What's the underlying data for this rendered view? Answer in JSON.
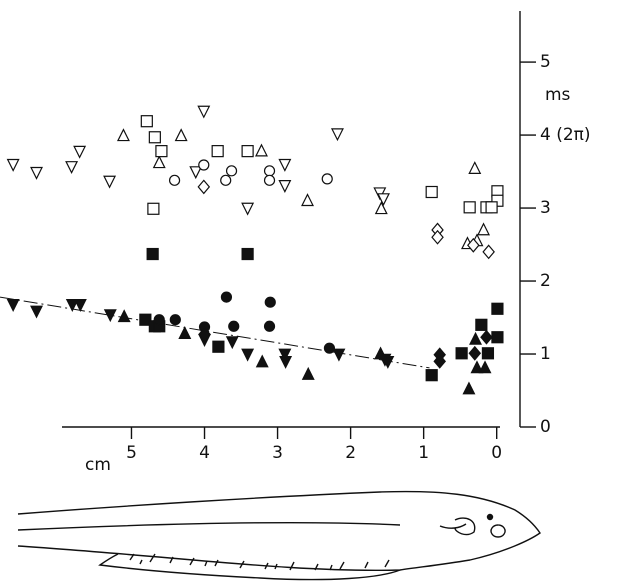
{
  "chart_data": {
    "type": "scatter",
    "xlabel": "cm",
    "ylabel": "ms",
    "xlim": [
      6.8,
      -0.1
    ],
    "ylim": [
      0,
      5.7
    ],
    "xticks": [
      5,
      4,
      3,
      2,
      1,
      0
    ],
    "yticks": [
      0,
      1,
      2,
      3,
      {
        "value": 4,
        "label": "4 (2π)"
      },
      5
    ],
    "color": "#111",
    "trend": {
      "x": [
        6.8,
        0.92
      ],
      "values": [
        1.78,
        0.81
      ]
    },
    "series": [
      {
        "marker": "triangle-down",
        "filled": false,
        "x": [
          6.62,
          6.3,
          5.82,
          5.71,
          5.3,
          4.01,
          4.12,
          3.41,
          2.9,
          2.9,
          2.18,
          1.6,
          1.55
        ],
        "values": [
          3.59,
          3.48,
          3.56,
          3.77,
          3.36,
          4.32,
          3.49,
          2.99,
          3.59,
          3.3,
          4.01,
          3.2,
          3.12
        ]
      },
      {
        "marker": "triangle-up",
        "filled": false,
        "x": [
          5.11,
          4.62,
          4.32,
          3.22,
          2.59,
          1.58,
          0.3,
          0.4,
          0.27,
          0.18
        ],
        "values": [
          4.0,
          3.63,
          4.0,
          3.79,
          3.11,
          3.0,
          3.55,
          2.52,
          2.56,
          2.71
        ]
      },
      {
        "marker": "square",
        "filled": false,
        "x": [
          4.79,
          4.68,
          4.59,
          4.7,
          3.82,
          3.41,
          0.89,
          0.37,
          0.14,
          -0.01,
          -0.01,
          0.07
        ],
        "values": [
          4.19,
          3.97,
          3.78,
          2.99,
          3.78,
          3.78,
          3.22,
          3.01,
          3.01,
          3.23,
          3.1,
          3.01
        ]
      },
      {
        "marker": "circle",
        "filled": false,
        "x": [
          4.41,
          4.01,
          3.71,
          3.63,
          3.11,
          3.11,
          2.32
        ],
        "values": [
          3.38,
          3.59,
          3.38,
          3.51,
          3.51,
          3.38,
          3.4
        ]
      },
      {
        "marker": "diamond",
        "filled": false,
        "x": [
          4.01,
          0.81,
          0.81,
          0.32,
          0.11
        ],
        "values": [
          3.29,
          2.7,
          2.6,
          2.49,
          2.4
        ]
      },
      {
        "marker": "square",
        "filled": true,
        "x": [
          4.71,
          3.41,
          4.81,
          4.68,
          4.62,
          3.81,
          0.89,
          0.48,
          0.21,
          0.12,
          -0.01,
          -0.01
        ],
        "values": [
          2.37,
          2.37,
          1.47,
          1.38,
          1.38,
          1.1,
          0.71,
          1.01,
          1.4,
          1.01,
          1.23,
          1.62
        ]
      },
      {
        "marker": "circle",
        "filled": true,
        "x": [
          4.4,
          4.0,
          3.7,
          3.6,
          3.1,
          3.11,
          2.29,
          4.62
        ],
        "values": [
          1.47,
          1.37,
          1.78,
          1.38,
          1.71,
          1.38,
          1.08,
          1.47
        ]
      },
      {
        "marker": "triangle-down",
        "filled": true,
        "x": [
          6.62,
          6.3,
          5.81,
          5.7,
          5.29,
          4.0,
          3.62,
          3.41,
          2.9,
          2.89,
          2.16,
          1.53,
          1.49
        ],
        "values": [
          1.67,
          1.58,
          1.67,
          1.67,
          1.53,
          1.19,
          1.16,
          0.99,
          0.99,
          0.89,
          0.99,
          0.92,
          0.89
        ]
      },
      {
        "marker": "triangle-up",
        "filled": true,
        "x": [
          5.1,
          4.27,
          3.21,
          2.58,
          1.59,
          0.38,
          0.29,
          0.27,
          0.16
        ],
        "values": [
          1.52,
          1.29,
          0.9,
          0.73,
          1.01,
          0.53,
          1.21,
          0.82,
          0.82
        ]
      },
      {
        "marker": "diamond",
        "filled": true,
        "x": [
          0.78,
          0.78,
          0.3,
          0.14,
          4.0
        ],
        "values": [
          0.99,
          0.9,
          1.01,
          1.23,
          1.27
        ]
      }
    ]
  }
}
